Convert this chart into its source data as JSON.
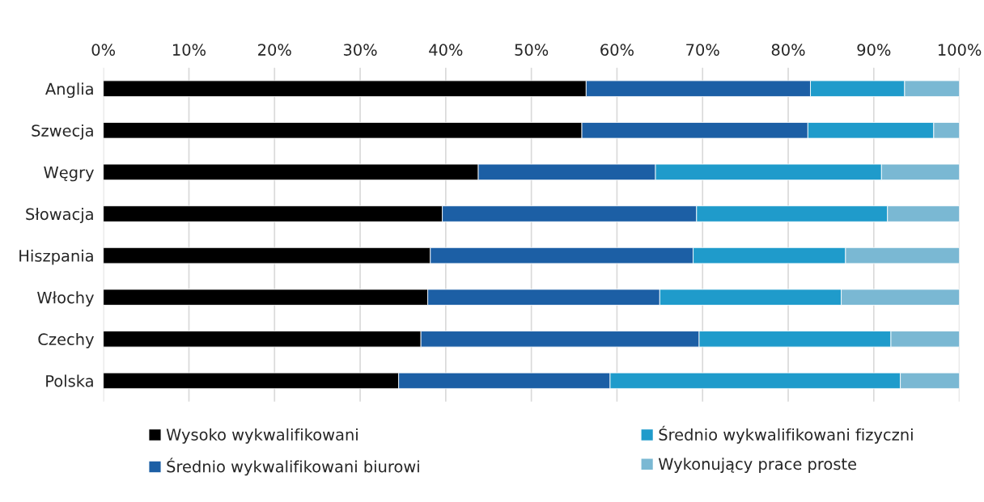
{
  "chart_data": {
    "type": "bar",
    "orientation": "horizontal",
    "stacked": true,
    "categories": [
      "Anglia",
      "Szwecja",
      "Węgry",
      "Słowacja",
      "Hiszpania",
      "Włochy",
      "Czechy",
      "Polska"
    ],
    "series": [
      {
        "name": "Wysoko wykwalifikowani",
        "color": "#000000",
        "values": [
          56.4,
          55.9,
          43.8,
          39.6,
          38.2,
          37.9,
          37.1,
          34.5
        ]
      },
      {
        "name": "Średnio wykwalifikowani biurowi",
        "color": "#1c5fa5",
        "values": [
          26.2,
          26.4,
          20.7,
          29.7,
          30.7,
          27.1,
          32.5,
          24.7
        ]
      },
      {
        "name": "Średnio wykwalifikowani fizyczni",
        "color": "#1f9bcb",
        "values": [
          11.0,
          14.7,
          26.4,
          22.3,
          17.8,
          21.2,
          22.4,
          33.9
        ]
      },
      {
        "name": "Wykonujący prace proste",
        "color": "#7ab8d3",
        "values": [
          6.4,
          3.0,
          9.1,
          8.4,
          13.3,
          13.8,
          8.0,
          6.9
        ]
      }
    ],
    "xlim": [
      0,
      100
    ],
    "xticks": [
      {
        "value": 0,
        "label": "0%"
      },
      {
        "value": 10,
        "label": "10%"
      },
      {
        "value": 20,
        "label": "20%"
      },
      {
        "value": 30,
        "label": "30%"
      },
      {
        "value": 40,
        "label": "40%"
      },
      {
        "value": 50,
        "label": "50%"
      },
      {
        "value": 60,
        "label": "60%"
      },
      {
        "value": 70,
        "label": "70%"
      },
      {
        "value": 80,
        "label": "80%"
      },
      {
        "value": 90,
        "label": "90%"
      },
      {
        "value": 100,
        "label": "100%"
      }
    ],
    "grid": "x",
    "legend": "bottom"
  }
}
